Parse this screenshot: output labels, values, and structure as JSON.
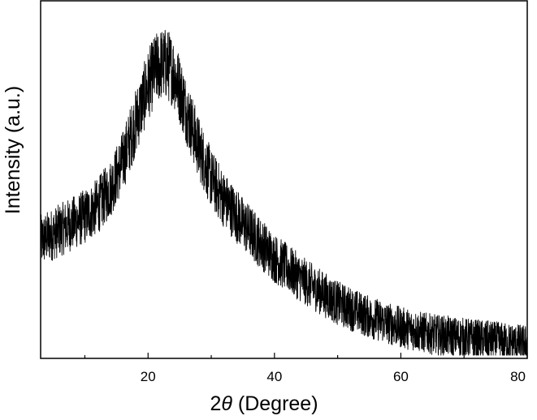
{
  "chart_data": {
    "type": "line",
    "title": "",
    "xlabel_prefix": "2",
    "xlabel_symbol": "θ",
    "xlabel_suffix": " (Degree)",
    "ylabel": "Intensity (a.u.)",
    "xlim": [
      3,
      80
    ],
    "ylim": [
      0,
      1
    ],
    "y_ticks_shown": false,
    "x_ticks": [
      20,
      40,
      60,
      80
    ],
    "x_tick_labels": [
      "20",
      "40",
      "60",
      "80"
    ],
    "grid": false,
    "legend": "none",
    "line_color": "#000000",
    "noise_amplitude": 0.1,
    "series": [
      {
        "x": [
          3,
          5,
          8,
          10,
          12,
          14,
          16,
          18,
          20,
          21,
          22,
          23,
          24,
          25,
          26,
          28,
          30,
          32,
          35,
          38,
          40,
          45,
          50,
          55,
          60,
          65,
          70,
          75,
          80
        ],
        "values": [
          0.33,
          0.35,
          0.38,
          0.4,
          0.43,
          0.48,
          0.56,
          0.67,
          0.78,
          0.82,
          0.84,
          0.84,
          0.82,
          0.77,
          0.71,
          0.6,
          0.51,
          0.45,
          0.38,
          0.32,
          0.28,
          0.21,
          0.15,
          0.11,
          0.08,
          0.06,
          0.05,
          0.04,
          0.03
        ]
      }
    ]
  }
}
